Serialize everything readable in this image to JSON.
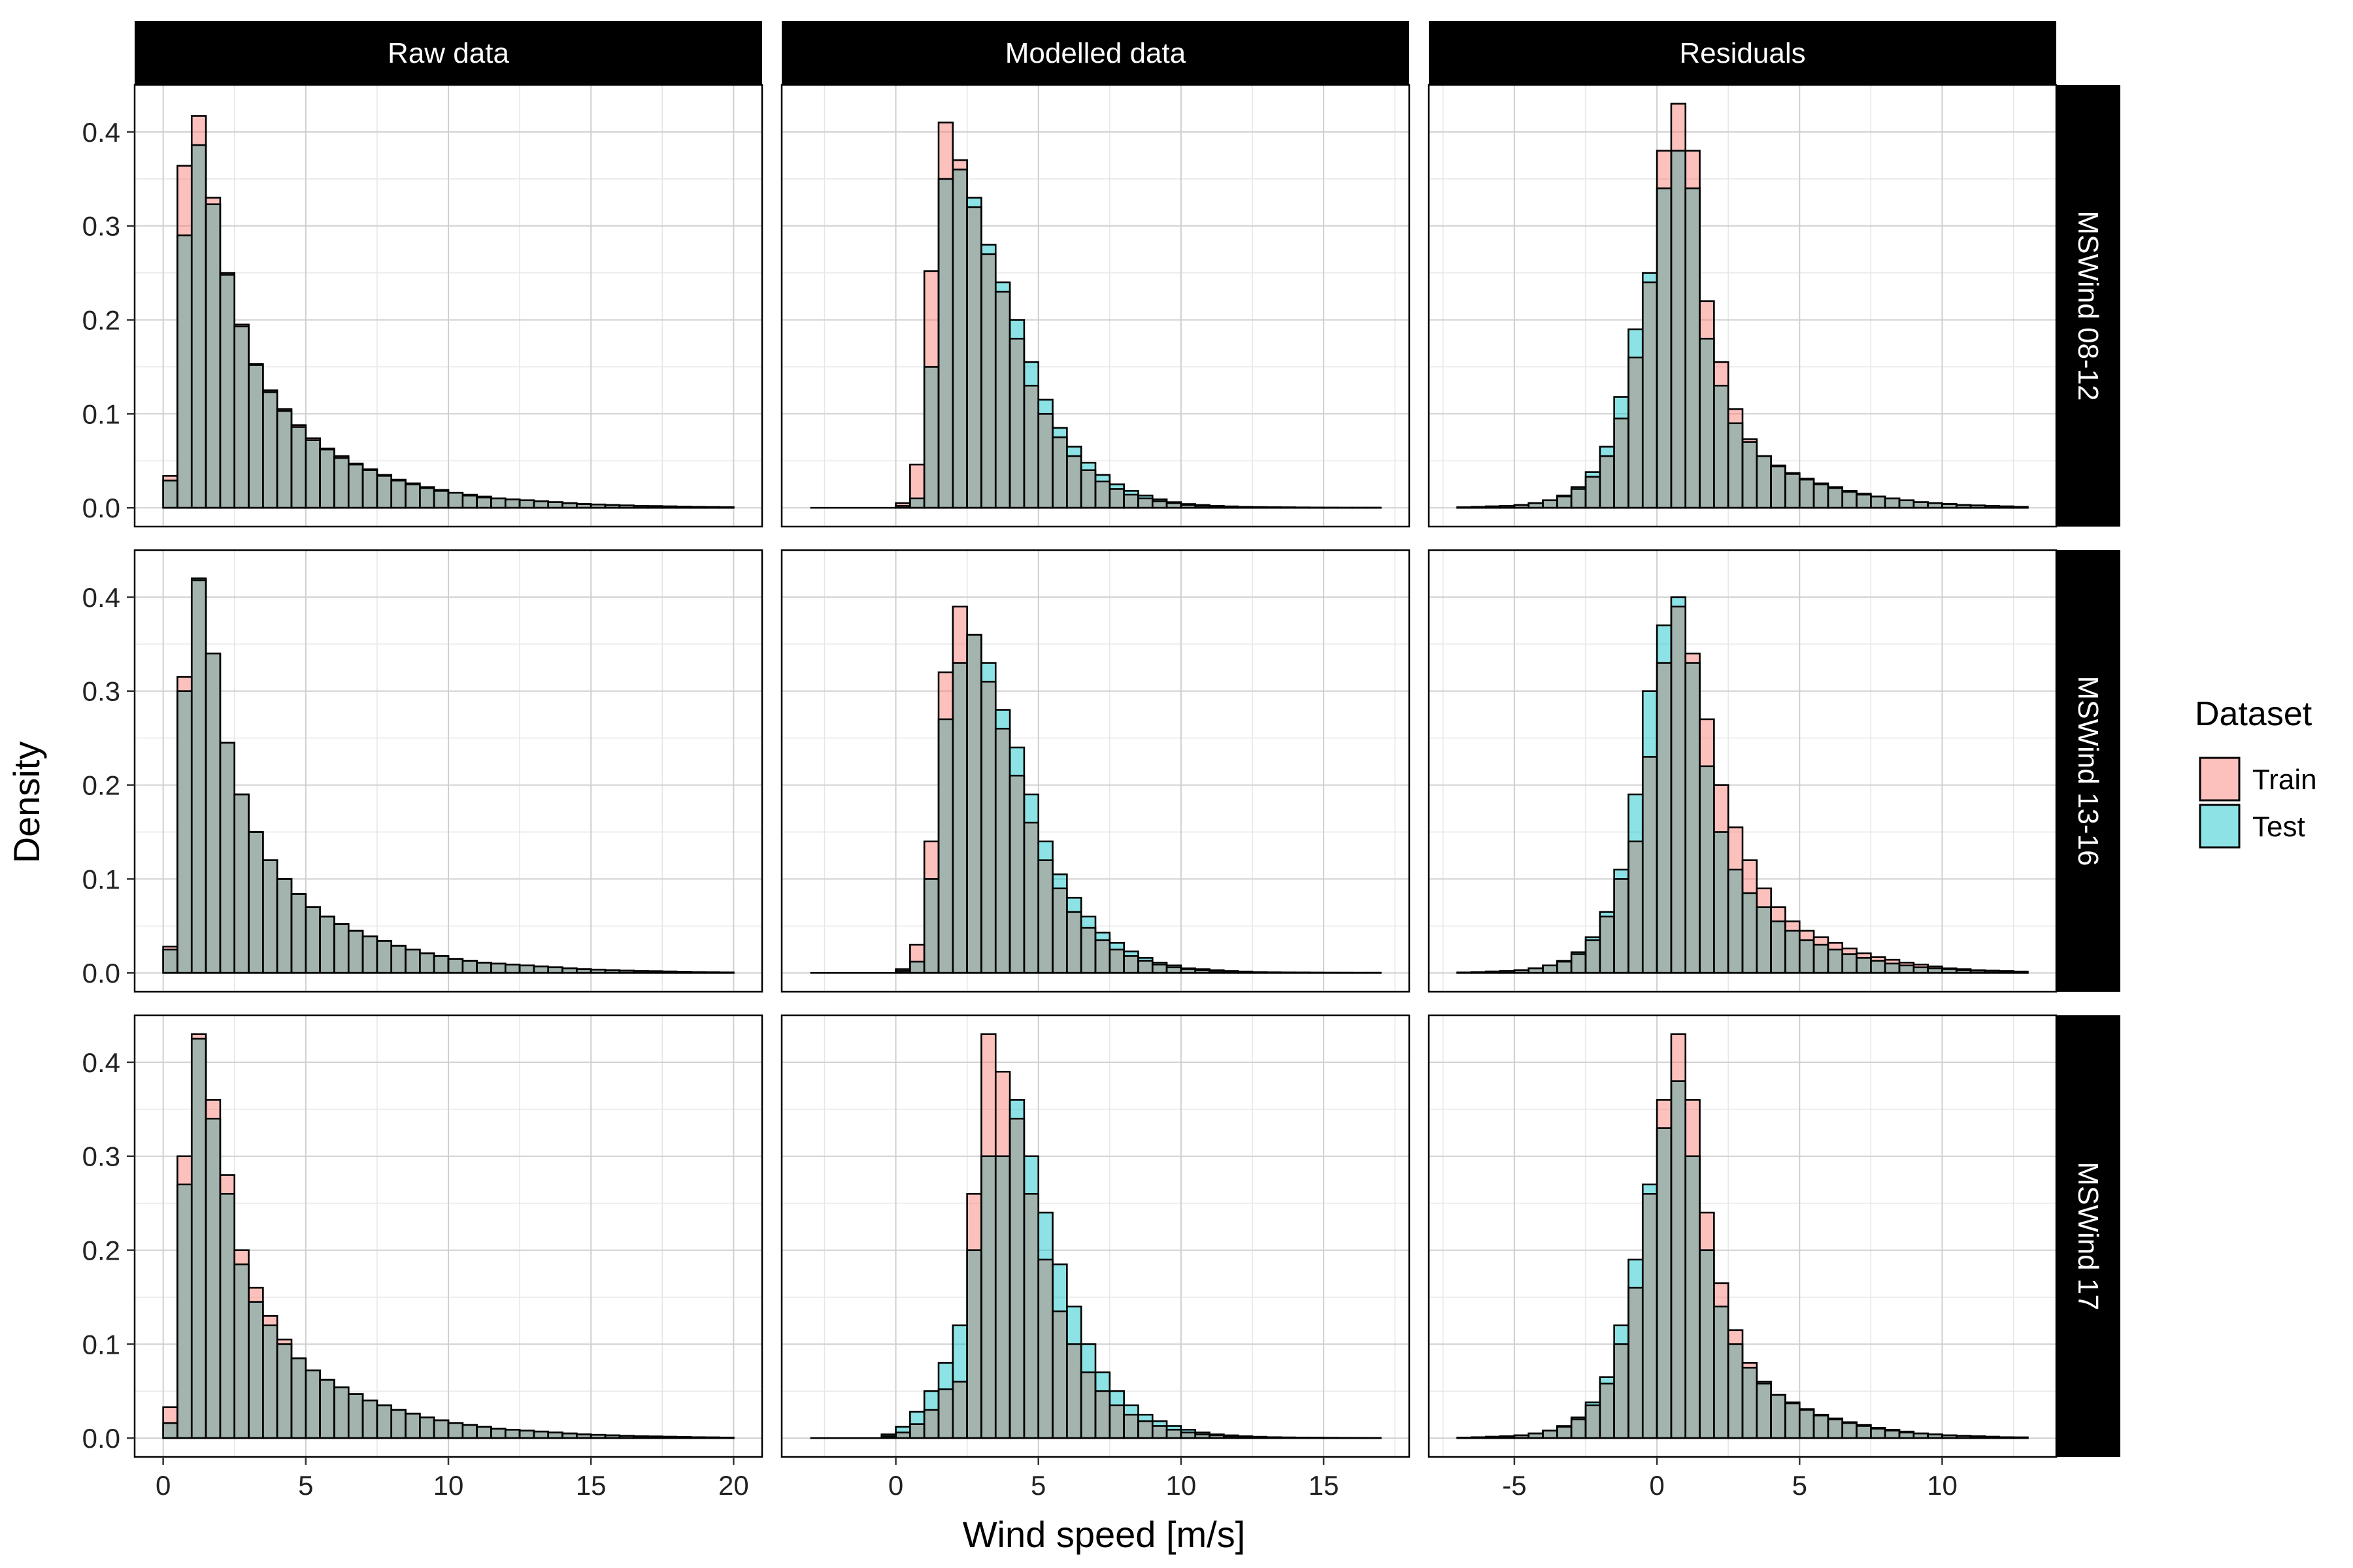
{
  "chart_data": {
    "type": "histogram-facet-grid",
    "ylabel": "Density",
    "xlabel": "Wind speed [m/s]",
    "legend": {
      "title": "Dataset",
      "placement": "right",
      "items": [
        {
          "label": "Train",
          "color": "#F8766D"
        },
        {
          "label": "Test",
          "color": "#00BFC4"
        }
      ]
    },
    "bar_alpha": 0.45,
    "bar_outline": "#000000",
    "overlap_color": "#A3B4AF",
    "grid": true,
    "y_range": [
      -0.02,
      0.45
    ],
    "y_ticks": [
      0.0,
      0.1,
      0.2,
      0.3,
      0.4
    ],
    "y_tick_labels": [
      "0.0",
      "0.1",
      "0.2",
      "0.3",
      "0.4"
    ],
    "columns": [
      {
        "label": "Raw data",
        "x_range": [
          -1,
          21
        ],
        "x_ticks": [
          0,
          5,
          10,
          15,
          20
        ],
        "x_tick_labels": [
          "0",
          "5",
          "10",
          "15",
          "20"
        ],
        "bin_start": 0,
        "bin_width": 0.5,
        "n_bins": 40
      },
      {
        "label": "Modelled data",
        "x_range": [
          -4,
          18
        ],
        "x_ticks": [
          0,
          5,
          10,
          15
        ],
        "x_tick_labels": [
          "0",
          "5",
          "10",
          "15"
        ],
        "bin_start": -3,
        "bin_width": 0.5,
        "n_bins": 40
      },
      {
        "label": "Residuals",
        "x_range": [
          -8,
          14
        ],
        "x_ticks": [
          -5,
          0,
          5,
          10
        ],
        "x_tick_labels": [
          "-5",
          "0",
          "5",
          "10"
        ],
        "bin_start": -7,
        "bin_width": 0.5,
        "n_bins": 40
      }
    ],
    "rows": [
      {
        "label": "MSWind 08-12"
      },
      {
        "label": "MSWind 13-16"
      },
      {
        "label": "MSWind 17"
      }
    ],
    "panels": [
      [
        {
          "train": [
            0.034,
            0.364,
            0.417,
            0.33,
            0.25,
            0.195,
            0.153,
            0.125,
            0.105,
            0.088,
            0.074,
            0.063,
            0.055,
            0.047,
            0.041,
            0.035,
            0.03,
            0.026,
            0.022,
            0.019,
            0.016,
            0.014,
            0.012,
            0.01,
            0.009,
            0.008,
            0.007,
            0.006,
            0.005,
            0.004,
            0.0035,
            0.003,
            0.0025,
            0.002,
            0.0018,
            0.0015,
            0.0012,
            0.001,
            0.0008,
            0.0006
          ],
          "test": [
            0.029,
            0.29,
            0.386,
            0.323,
            0.248,
            0.193,
            0.152,
            0.123,
            0.103,
            0.086,
            0.072,
            0.062,
            0.053,
            0.046,
            0.04,
            0.034,
            0.029,
            0.025,
            0.021,
            0.018,
            0.016,
            0.013,
            0.011,
            0.01,
            0.009,
            0.008,
            0.007,
            0.006,
            0.005,
            0.004,
            0.0035,
            0.003,
            0.0025,
            0.002,
            0.0018,
            0.0015,
            0.0012,
            0.001,
            0.0008,
            0.0006
          ]
        },
        {
          "train": [
            0,
            0,
            0,
            0,
            0,
            0,
            0.005,
            0.046,
            0.252,
            0.41,
            0.37,
            0.32,
            0.27,
            0.23,
            0.18,
            0.13,
            0.1,
            0.075,
            0.055,
            0.04,
            0.028,
            0.02,
            0.014,
            0.01,
            0.007,
            0.005,
            0.003,
            0.002,
            0.0015,
            0.001,
            0.0008,
            0.0006,
            0.0005,
            0.0004,
            0.0003,
            0.0002,
            0.0001,
            0.0001,
            0.0001,
            0.0001
          ],
          "test": [
            0,
            0,
            0,
            0,
            0,
            0,
            0.002,
            0.01,
            0.15,
            0.35,
            0.36,
            0.33,
            0.28,
            0.24,
            0.2,
            0.155,
            0.115,
            0.085,
            0.065,
            0.048,
            0.035,
            0.025,
            0.018,
            0.013,
            0.009,
            0.006,
            0.004,
            0.003,
            0.002,
            0.0015,
            0.001,
            0.0008,
            0.0006,
            0.0005,
            0.0004,
            0.0003,
            0.0002,
            0.0001,
            0.0001,
            0.0001
          ]
        },
        {
          "train": [
            0.0005,
            0.001,
            0.0015,
            0.002,
            0.003,
            0.005,
            0.008,
            0.012,
            0.02,
            0.033,
            0.055,
            0.095,
            0.16,
            0.24,
            0.38,
            0.43,
            0.38,
            0.22,
            0.155,
            0.105,
            0.073,
            0.055,
            0.044,
            0.036,
            0.03,
            0.025,
            0.021,
            0.017,
            0.014,
            0.012,
            0.01,
            0.008,
            0.006,
            0.005,
            0.004,
            0.003,
            0.0025,
            0.002,
            0.0015,
            0.001
          ],
          "test": [
            0.0005,
            0.001,
            0.0015,
            0.002,
            0.003,
            0.005,
            0.008,
            0.013,
            0.022,
            0.038,
            0.065,
            0.118,
            0.19,
            0.25,
            0.34,
            0.38,
            0.34,
            0.18,
            0.13,
            0.09,
            0.07,
            0.055,
            0.045,
            0.037,
            0.031,
            0.026,
            0.022,
            0.018,
            0.015,
            0.012,
            0.01,
            0.008,
            0.006,
            0.005,
            0.004,
            0.003,
            0.0025,
            0.002,
            0.0015,
            0.001
          ]
        }
      ],
      [
        {
          "train": [
            0.028,
            0.315,
            0.418,
            0.34,
            0.245,
            0.19,
            0.15,
            0.12,
            0.1,
            0.084,
            0.07,
            0.06,
            0.052,
            0.045,
            0.039,
            0.034,
            0.029,
            0.025,
            0.021,
            0.018,
            0.015,
            0.013,
            0.011,
            0.01,
            0.009,
            0.008,
            0.007,
            0.006,
            0.005,
            0.004,
            0.0035,
            0.003,
            0.0025,
            0.002,
            0.0018,
            0.0015,
            0.0012,
            0.001,
            0.0008,
            0.0006
          ],
          "test": [
            0.025,
            0.3,
            0.42,
            0.34,
            0.245,
            0.19,
            0.15,
            0.12,
            0.1,
            0.084,
            0.07,
            0.06,
            0.052,
            0.045,
            0.039,
            0.034,
            0.029,
            0.025,
            0.021,
            0.018,
            0.015,
            0.013,
            0.011,
            0.01,
            0.009,
            0.008,
            0.007,
            0.006,
            0.005,
            0.004,
            0.0035,
            0.003,
            0.0025,
            0.002,
            0.0018,
            0.0015,
            0.0012,
            0.001,
            0.0008,
            0.0006
          ]
        },
        {
          "train": [
            0,
            0,
            0,
            0,
            0,
            0,
            0.004,
            0.03,
            0.14,
            0.32,
            0.39,
            0.36,
            0.31,
            0.26,
            0.21,
            0.16,
            0.12,
            0.09,
            0.065,
            0.048,
            0.035,
            0.025,
            0.018,
            0.013,
            0.009,
            0.006,
            0.004,
            0.003,
            0.002,
            0.0015,
            0.001,
            0.0008,
            0.0006,
            0.0005,
            0.0004,
            0.0003,
            0.0002,
            0.0001,
            0.0001,
            0.0001
          ],
          "test": [
            0,
            0,
            0,
            0,
            0,
            0,
            0.002,
            0.012,
            0.1,
            0.27,
            0.33,
            0.36,
            0.33,
            0.28,
            0.24,
            0.19,
            0.14,
            0.105,
            0.08,
            0.06,
            0.043,
            0.032,
            0.023,
            0.016,
            0.011,
            0.008,
            0.005,
            0.004,
            0.003,
            0.002,
            0.0015,
            0.001,
            0.0008,
            0.0006,
            0.0005,
            0.0004,
            0.0003,
            0.0002,
            0.0001,
            0.0001
          ]
        },
        {
          "train": [
            0.0005,
            0.001,
            0.0015,
            0.002,
            0.003,
            0.005,
            0.008,
            0.012,
            0.02,
            0.035,
            0.06,
            0.1,
            0.14,
            0.23,
            0.33,
            0.39,
            0.34,
            0.27,
            0.2,
            0.155,
            0.12,
            0.09,
            0.07,
            0.055,
            0.045,
            0.038,
            0.032,
            0.026,
            0.021,
            0.017,
            0.014,
            0.011,
            0.009,
            0.007,
            0.005,
            0.004,
            0.003,
            0.0025,
            0.002,
            0.0015
          ],
          "test": [
            0.0005,
            0.001,
            0.0015,
            0.002,
            0.003,
            0.005,
            0.008,
            0.013,
            0.022,
            0.038,
            0.065,
            0.11,
            0.19,
            0.3,
            0.37,
            0.4,
            0.33,
            0.22,
            0.15,
            0.11,
            0.085,
            0.07,
            0.055,
            0.045,
            0.035,
            0.03,
            0.025,
            0.02,
            0.016,
            0.013,
            0.01,
            0.008,
            0.006,
            0.005,
            0.004,
            0.003,
            0.0025,
            0.002,
            0.0015,
            0.001
          ]
        }
      ],
      [
        {
          "train": [
            0.033,
            0.3,
            0.43,
            0.36,
            0.28,
            0.2,
            0.16,
            0.13,
            0.105,
            0.085,
            0.072,
            0.062,
            0.054,
            0.047,
            0.04,
            0.035,
            0.03,
            0.026,
            0.022,
            0.019,
            0.016,
            0.014,
            0.012,
            0.01,
            0.009,
            0.008,
            0.007,
            0.006,
            0.005,
            0.004,
            0.0035,
            0.003,
            0.0025,
            0.002,
            0.0018,
            0.0015,
            0.0012,
            0.001,
            0.0008,
            0.0006
          ],
          "test": [
            0.016,
            0.27,
            0.425,
            0.34,
            0.26,
            0.185,
            0.145,
            0.12,
            0.1,
            0.085,
            0.072,
            0.062,
            0.054,
            0.047,
            0.04,
            0.035,
            0.03,
            0.026,
            0.022,
            0.019,
            0.016,
            0.014,
            0.012,
            0.01,
            0.009,
            0.008,
            0.007,
            0.006,
            0.005,
            0.004,
            0.0035,
            0.003,
            0.0025,
            0.002,
            0.0018,
            0.0015,
            0.0012,
            0.001,
            0.0008,
            0.0006
          ]
        },
        {
          "train": [
            0,
            0,
            0,
            0,
            0,
            0.002,
            0.006,
            0.015,
            0.03,
            0.052,
            0.06,
            0.26,
            0.43,
            0.39,
            0.34,
            0.26,
            0.19,
            0.135,
            0.1,
            0.07,
            0.05,
            0.035,
            0.025,
            0.018,
            0.013,
            0.009,
            0.006,
            0.004,
            0.003,
            0.002,
            0.0015,
            0.001,
            0.0008,
            0.0006,
            0.0005,
            0.0004,
            0.0003,
            0.0002,
            0.0001,
            0.0001
          ],
          "test": [
            0,
            0,
            0,
            0,
            0,
            0.004,
            0.012,
            0.028,
            0.05,
            0.08,
            0.12,
            0.2,
            0.3,
            0.3,
            0.36,
            0.3,
            0.24,
            0.185,
            0.14,
            0.1,
            0.07,
            0.05,
            0.035,
            0.025,
            0.018,
            0.013,
            0.009,
            0.006,
            0.004,
            0.003,
            0.002,
            0.0015,
            0.001,
            0.0008,
            0.0006,
            0.0005,
            0.0004,
            0.0003,
            0.0002,
            0.0001
          ]
        },
        {
          "train": [
            0.0005,
            0.001,
            0.0015,
            0.002,
            0.003,
            0.005,
            0.008,
            0.012,
            0.02,
            0.035,
            0.058,
            0.1,
            0.16,
            0.26,
            0.36,
            0.43,
            0.36,
            0.24,
            0.165,
            0.115,
            0.08,
            0.06,
            0.046,
            0.037,
            0.03,
            0.024,
            0.02,
            0.016,
            0.013,
            0.01,
            0.008,
            0.006,
            0.005,
            0.004,
            0.003,
            0.0025,
            0.002,
            0.0015,
            0.001,
            0.0008
          ],
          "test": [
            0.0005,
            0.001,
            0.0015,
            0.002,
            0.003,
            0.005,
            0.008,
            0.013,
            0.022,
            0.038,
            0.065,
            0.12,
            0.19,
            0.27,
            0.33,
            0.38,
            0.3,
            0.2,
            0.14,
            0.1,
            0.075,
            0.058,
            0.046,
            0.038,
            0.031,
            0.025,
            0.021,
            0.017,
            0.014,
            0.011,
            0.009,
            0.007,
            0.005,
            0.004,
            0.003,
            0.0025,
            0.002,
            0.0015,
            0.001,
            0.0008
          ]
        }
      ]
    ]
  }
}
